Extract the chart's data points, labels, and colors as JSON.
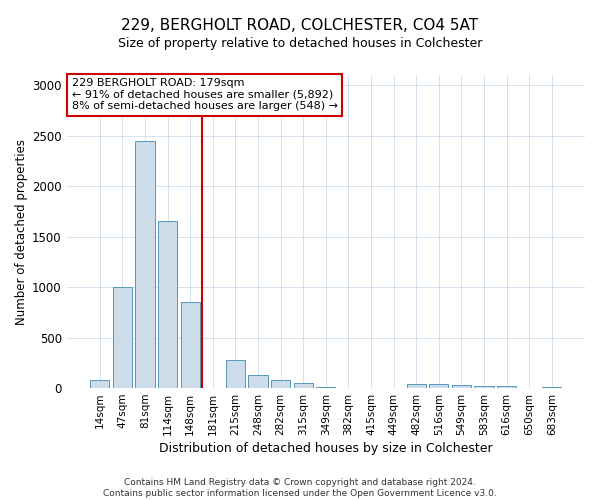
{
  "title1": "229, BERGHOLT ROAD, COLCHESTER, CO4 5AT",
  "title2": "Size of property relative to detached houses in Colchester",
  "xlabel": "Distribution of detached houses by size in Colchester",
  "ylabel": "Number of detached properties",
  "categories": [
    "14sqm",
    "47sqm",
    "81sqm",
    "114sqm",
    "148sqm",
    "181sqm",
    "215sqm",
    "248sqm",
    "282sqm",
    "315sqm",
    "349sqm",
    "382sqm",
    "415sqm",
    "449sqm",
    "482sqm",
    "516sqm",
    "549sqm",
    "583sqm",
    "616sqm",
    "650sqm",
    "683sqm"
  ],
  "values": [
    75,
    1000,
    2450,
    1650,
    850,
    0,
    280,
    130,
    75,
    50,
    10,
    5,
    3,
    2,
    45,
    45,
    30,
    25,
    20,
    5,
    8
  ],
  "bar_color": "#ccdce8",
  "bar_edge_color": "#5599bb",
  "vline_color": "#cc0000",
  "annotation_text": "229 BERGHOLT ROAD: 179sqm\n← 91% of detached houses are smaller (5,892)\n8% of semi-detached houses are larger (548) →",
  "annotation_box_color": "#cc0000",
  "ylim": [
    0,
    3100
  ],
  "yticks": [
    0,
    500,
    1000,
    1500,
    2000,
    2500,
    3000
  ],
  "footer": "Contains HM Land Registry data © Crown copyright and database right 2024.\nContains public sector information licensed under the Open Government Licence v3.0.",
  "bg_color": "#ffffff",
  "grid_color": "#ccddee"
}
